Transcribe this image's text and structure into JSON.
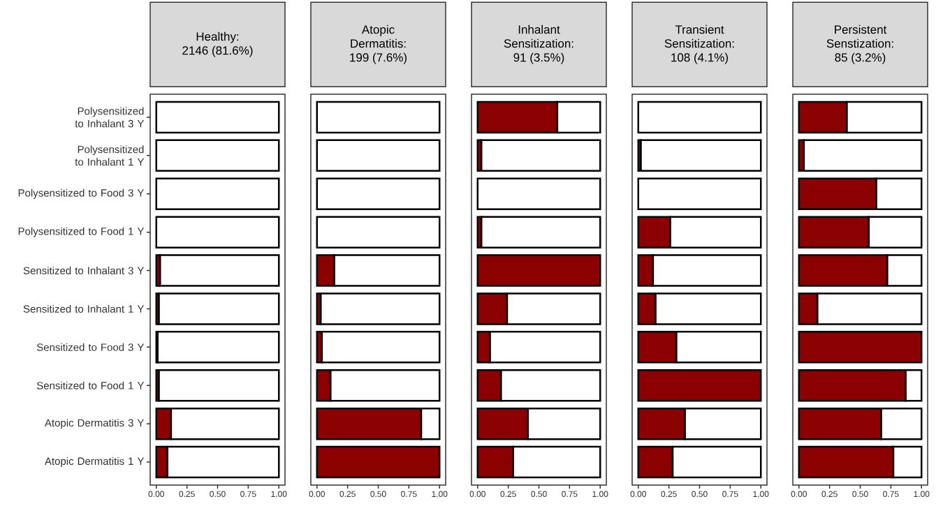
{
  "chart_data": [
    {
      "type": "bar",
      "orientation": "horizontal",
      "stacked": true,
      "title": "Healthy:",
      "subtitle": "2146 (81.6%)",
      "categories": [
        "Polysensitized to Inhalant 3 Y",
        "Polysensitized to Inhalant 1 Y",
        "Polysensitized to Food 3 Y",
        "Polysensitized to Food 1 Y",
        "Sensitized to Inhalant 3 Y",
        "Sensitized to Inhalant 1 Y",
        "Sensitized to Food 3 Y",
        "Sensitized to Food 1 Y",
        "Atopic Dermatitis 3 Y",
        "Atopic Dermatitis 1 Y"
      ],
      "series": [
        {
          "color": "#8b0000",
          "values": [
            0,
            0,
            0,
            0,
            0.03,
            0.02,
            0.01,
            0.02,
            0.12,
            0.09
          ]
        },
        {
          "color": "#ffffff",
          "values": [
            1,
            1,
            1,
            1,
            0.97,
            0.98,
            0.99,
            0.98,
            0.88,
            0.91
          ]
        }
      ],
      "xlim": [
        -0.05,
        1.05
      ],
      "xticks": [
        {
          "value": 0,
          "label": "0.00"
        },
        {
          "value": 0.25,
          "label": "0.25"
        },
        {
          "value": 0.5,
          "label": "0.50"
        },
        {
          "value": 0.75,
          "label": "0.75"
        },
        {
          "value": 1,
          "label": "1.00"
        }
      ]
    },
    {
      "type": "bar",
      "orientation": "horizontal",
      "stacked": true,
      "title": "Atopic Dermatitis:",
      "subtitle": "199 (7.6%)",
      "tick_labels": "x",
      "series": [
        {
          "color": "#8b0000",
          "values": [
            0,
            0,
            0,
            0,
            0.14,
            0.03,
            0.04,
            0.11,
            0.85,
            1
          ]
        },
        {
          "color": "#ffffff",
          "values": [
            1,
            1,
            1,
            1,
            0.86,
            0.97,
            0.96,
            0.89,
            0.15,
            0
          ]
        }
      ],
      "xlim": [
        -0.05,
        1.05
      ],
      "xticks": [
        {
          "value": 0,
          "label": "0.00"
        },
        {
          "value": 0.25,
          "label": "0.25"
        },
        {
          "value": 0.5,
          "label": "0.50"
        },
        {
          "value": 0.75,
          "label": "0.75"
        },
        {
          "value": 1,
          "label": "1.00"
        }
      ]
    },
    {
      "type": "bar",
      "orientation": "horizontal",
      "stacked": true,
      "title": "Inhalant Sensitization:",
      "subtitle": "91 (3.5%)",
      "tick_labels": "x",
      "series": [
        {
          "color": "#8b0000",
          "values": [
            0.65,
            0.03,
            0,
            0.03,
            1,
            0.24,
            0.1,
            0.19,
            0.41,
            0.29
          ]
        },
        {
          "color": "#ffffff",
          "values": [
            0.35,
            0.97,
            1,
            0.97,
            0,
            0.76,
            0.9,
            0.81,
            0.59,
            0.71
          ]
        }
      ],
      "xlim": [
        -0.05,
        1.05
      ],
      "xticks": [
        {
          "value": 0,
          "label": "0.00"
        },
        {
          "value": 0.25,
          "label": "0.25"
        },
        {
          "value": 0.5,
          "label": "0.50"
        },
        {
          "value": 0.75,
          "label": "0.75"
        },
        {
          "value": 1,
          "label": "1.00"
        }
      ]
    },
    {
      "type": "bar",
      "orientation": "horizontal",
      "stacked": true,
      "title": "Transient Sensitization:",
      "subtitle": "108 (4.1%)",
      "tick_labels": "x",
      "series": [
        {
          "color": "#8b0000",
          "values": [
            0,
            0.02,
            0,
            0.26,
            0.12,
            0.14,
            0.31,
            1,
            0.38,
            0.28
          ]
        },
        {
          "color": "#ffffff",
          "values": [
            1,
            0.98,
            1,
            0.74,
            0.88,
            0.86,
            0.69,
            0,
            0.62,
            0.72
          ]
        }
      ],
      "xlim": [
        -0.05,
        1.05
      ],
      "xticks": [
        {
          "value": 0,
          "label": "0.00"
        },
        {
          "value": 0.25,
          "label": "0.25"
        },
        {
          "value": 0.5,
          "label": "0.50"
        },
        {
          "value": 0.75,
          "label": "0.75"
        },
        {
          "value": 1,
          "label": "1.00"
        }
      ]
    },
    {
      "type": "bar",
      "orientation": "horizontal",
      "stacked": true,
      "title": "Persistent Senstization:",
      "subtitle": "85 (3.2%)",
      "tick_labels": "x",
      "series": [
        {
          "color": "#8b0000",
          "values": [
            0.39,
            0.04,
            0.63,
            0.57,
            0.72,
            0.15,
            1,
            0.87,
            0.67,
            0.77
          ]
        },
        {
          "color": "#ffffff",
          "values": [
            0.61,
            0.96,
            0.37,
            0.43,
            0.28,
            0.85,
            0,
            0.13,
            0.33,
            0.23
          ]
        }
      ],
      "xlim": [
        -0.05,
        1.05
      ],
      "xticks": [
        {
          "value": 0,
          "label": "0.00"
        },
        {
          "value": 0.25,
          "label": "0.25"
        },
        {
          "value": 0.5,
          "label": "0.50"
        },
        {
          "value": 0.75,
          "label": "0.75"
        },
        {
          "value": 1,
          "label": "1.00"
        }
      ]
    }
  ]
}
